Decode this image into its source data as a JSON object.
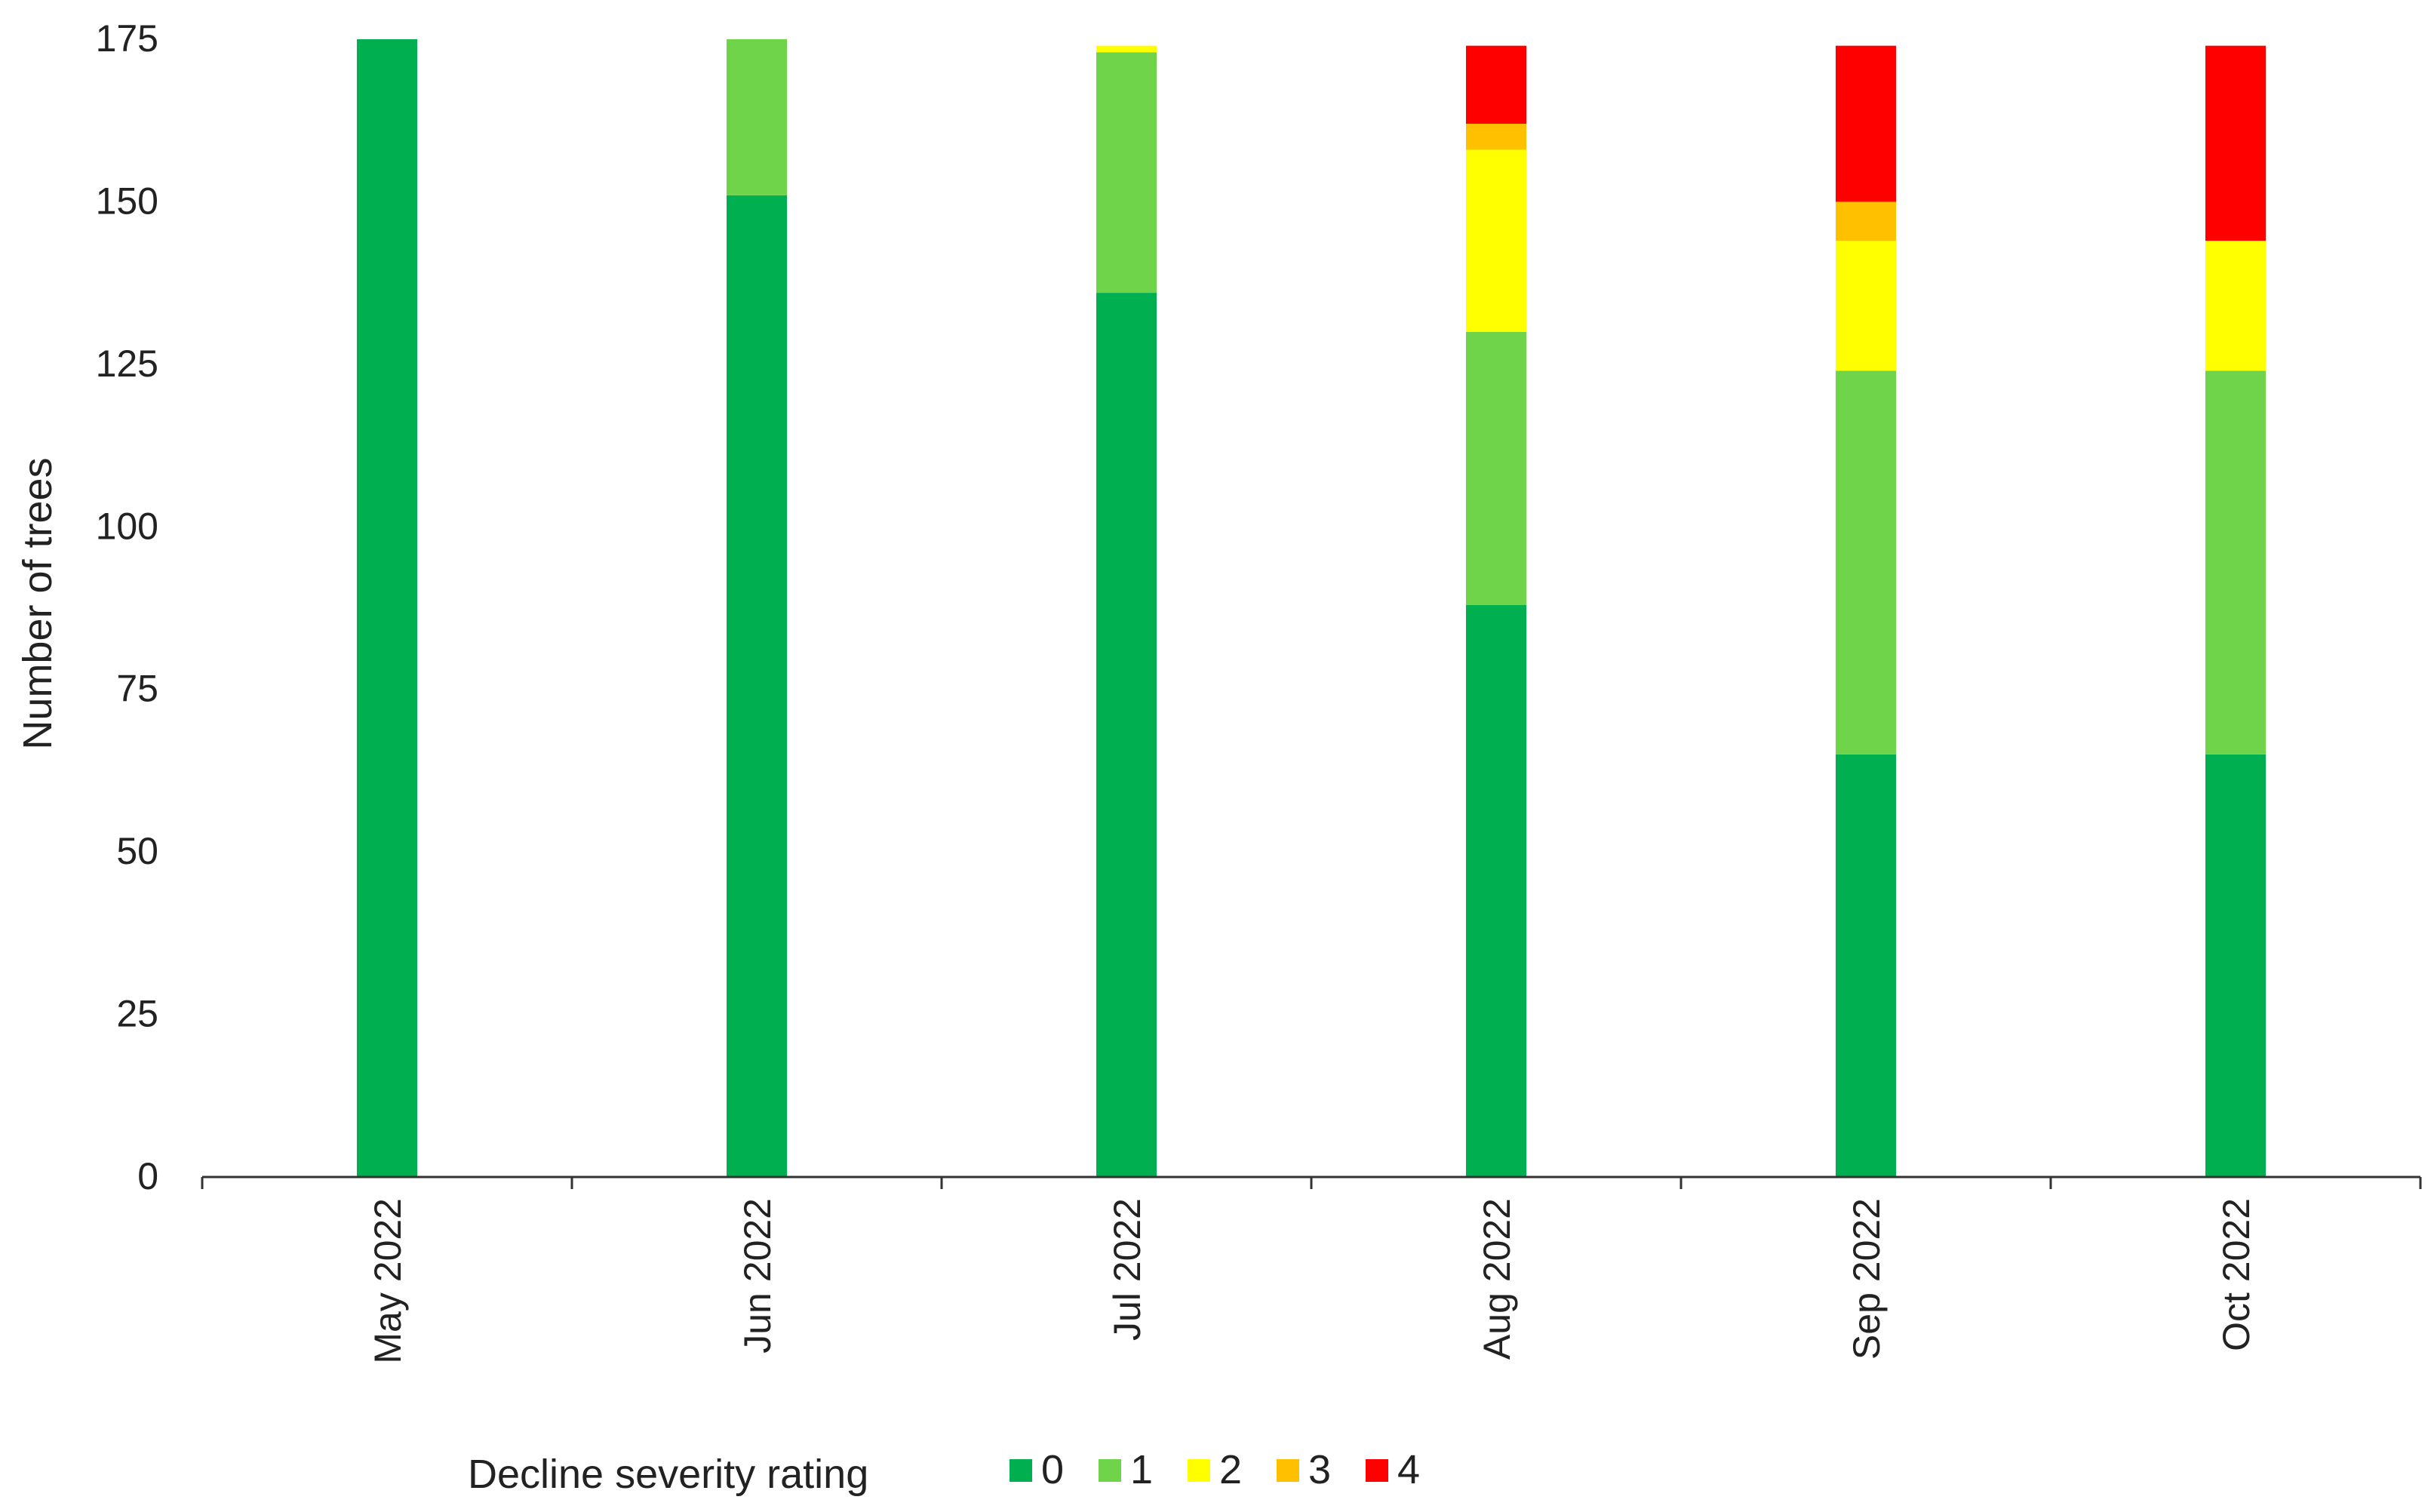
{
  "chart_data": {
    "type": "bar",
    "stacked": true,
    "title": "",
    "xlabel": "",
    "ylabel": "Number of trees",
    "ylim": [
      0,
      175
    ],
    "yticks": [
      0,
      25,
      50,
      75,
      100,
      125,
      150,
      175
    ],
    "categories": [
      "May 2022",
      "Jun 2022",
      "Jul 2022",
      "Aug 2022",
      "Sep 2022",
      "Oct 2022"
    ],
    "series": [
      {
        "name": "0",
        "color": "#00b050",
        "values": [
          175,
          151,
          136,
          88,
          65,
          65
        ]
      },
      {
        "name": "1",
        "color": "#70d44b",
        "values": [
          0,
          24,
          37,
          42,
          59,
          59
        ]
      },
      {
        "name": "2",
        "color": "#ffff00",
        "values": [
          0,
          0,
          1,
          28,
          20,
          20
        ]
      },
      {
        "name": "3",
        "color": "#ffc000",
        "values": [
          0,
          0,
          0,
          4,
          6,
          0
        ]
      },
      {
        "name": "4",
        "color": "#ff0000",
        "values": [
          0,
          0,
          0,
          12,
          24,
          30
        ]
      }
    ],
    "legend": {
      "title": "Decline severity rating",
      "position": "bottom"
    },
    "grid": false
  }
}
